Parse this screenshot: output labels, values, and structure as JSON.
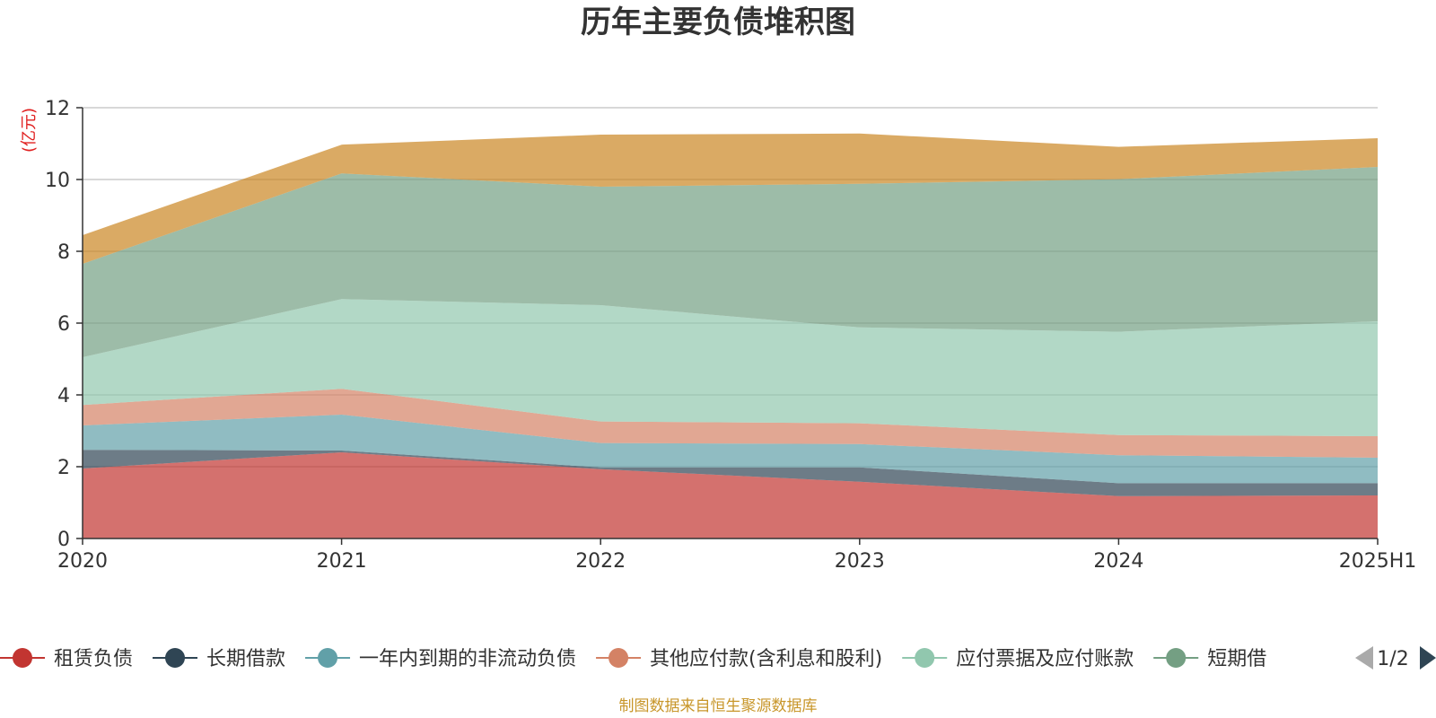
{
  "chart_data": {
    "type": "area",
    "stacked": true,
    "title": "历年主要负债堆积图",
    "unit_label": "(亿元)",
    "categories": [
      "2020",
      "2021",
      "2022",
      "2023",
      "2024",
      "2025H1"
    ],
    "ylim": [
      0,
      12
    ],
    "yticks": [
      0,
      2,
      4,
      6,
      8,
      10,
      12
    ],
    "grid": true,
    "series": [
      {
        "name": "租赁负债",
        "color": "#c23531",
        "values": [
          1.95,
          2.4,
          1.93,
          1.58,
          1.18,
          1.2
        ]
      },
      {
        "name": "长期借款",
        "color": "#2f4554",
        "values": [
          0.52,
          0.05,
          0.05,
          0.4,
          0.36,
          0.34
        ]
      },
      {
        "name": "一年内到期的非流动负债",
        "color": "#61a0a8",
        "values": [
          0.68,
          1.0,
          0.68,
          0.65,
          0.78,
          0.71
        ]
      },
      {
        "name": "其他应付款(含利息和股利)",
        "color": "#d48265",
        "values": [
          0.57,
          0.72,
          0.6,
          0.58,
          0.56,
          0.6
        ]
      },
      {
        "name": "应付票据及应付账款",
        "color": "#91c7ae",
        "values": [
          1.33,
          2.5,
          3.24,
          2.67,
          2.88,
          3.2
        ]
      },
      {
        "name": "短期借款",
        "color": "#749f83",
        "values": [
          2.6,
          3.5,
          3.3,
          4.0,
          4.25,
          4.3
        ]
      },
      {
        "name": "",
        "color": "#ca8622",
        "values": [
          0.8,
          0.8,
          1.45,
          1.4,
          0.9,
          0.8
        ]
      }
    ]
  },
  "legend": {
    "items": [
      {
        "label": "租赁负债",
        "color": "#c23531"
      },
      {
        "label": "长期借款",
        "color": "#2f4554"
      },
      {
        "label": "一年内到期的非流动负债",
        "color": "#61a0a8"
      },
      {
        "label": "其他应付款(含利息和股利)",
        "color": "#d48265"
      },
      {
        "label": "应付票据及应付账款",
        "color": "#91c7ae"
      },
      {
        "label": "短期借",
        "color": "#749f83"
      }
    ],
    "page_indicator": "1/2",
    "prev_icon": "triangle-left-icon",
    "next_icon": "triangle-right-icon"
  },
  "source_note": "制图数据来自恒生聚源数据库"
}
